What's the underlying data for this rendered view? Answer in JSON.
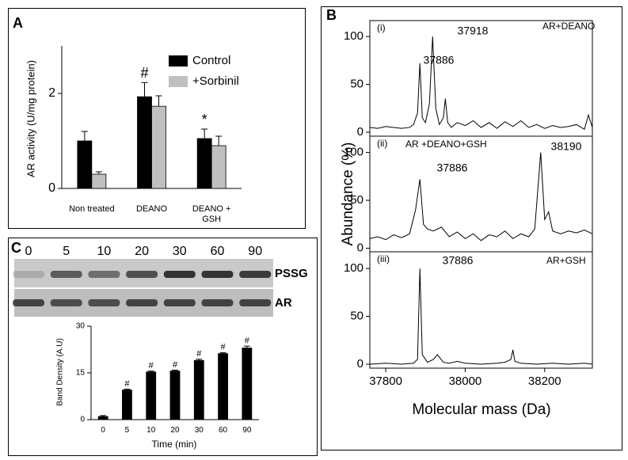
{
  "panel_labels": [
    "A",
    "B",
    "C"
  ],
  "spectra_axes": {
    "ylabel": "Abundance (%)",
    "xlabel": "Molecular mass (Da)"
  },
  "blot": {
    "lanes": [
      "0",
      "5",
      "10",
      "20",
      "30",
      "60",
      "90"
    ],
    "rows": [
      "PSSG",
      "AR"
    ]
  },
  "chart_data": [
    {
      "type": "bar",
      "ylabel": "AR activity (U/mg protein)",
      "categories": [
        "Non treated",
        "DEANO",
        "DEANO +\nGSH"
      ],
      "series": [
        {
          "name": "Control",
          "color": "#000000",
          "values": [
            1.0,
            1.93,
            1.05
          ],
          "errors": [
            0.2,
            0.3,
            0.2
          ],
          "labels": [
            null,
            "#",
            "*"
          ]
        },
        {
          "name": "+Sorbinil",
          "color": "#c0c0c0",
          "values": [
            0.3,
            1.73,
            0.9
          ],
          "errors": [
            0.05,
            0.22,
            0.2
          ],
          "labels": [
            null,
            null,
            null
          ]
        }
      ],
      "ylim": [
        0,
        3
      ],
      "yticks": [
        0,
        2
      ],
      "legend": "upper right"
    },
    {
      "type": "line",
      "panel": "(i)",
      "title": "AR+DEANO",
      "peak_labels": [
        "37886",
        "37918"
      ],
      "color": "#000000",
      "x": [
        37760,
        37780,
        37800,
        37820,
        37840,
        37860,
        37870,
        37880,
        37886,
        37892,
        37900,
        37910,
        37918,
        37926,
        37935,
        37945,
        37950,
        37956,
        37965,
        37980,
        38000,
        38020,
        38040,
        38060,
        38080,
        38100,
        38120,
        38140,
        38160,
        38180,
        38200,
        38220,
        38240,
        38260,
        38280,
        38300,
        38310,
        38320
      ],
      "values": [
        5,
        4,
        6,
        5,
        4,
        5,
        8,
        20,
        72,
        15,
        10,
        30,
        100,
        25,
        8,
        15,
        35,
        10,
        5,
        10,
        7,
        12,
        5,
        10,
        4,
        11,
        6,
        12,
        5,
        8,
        4,
        7,
        5,
        6,
        8,
        3,
        18,
        5
      ],
      "xlim": [
        37760,
        38320
      ],
      "ylim": [
        0,
        110
      ],
      "yticks": [
        0,
        50,
        100
      ]
    },
    {
      "type": "line",
      "panel": "(ii)",
      "title": "AR +DEANO+GSH",
      "peak_labels": [
        "37886",
        "38190"
      ],
      "color": "#000000",
      "x": [
        37760,
        37780,
        37800,
        37820,
        37840,
        37860,
        37875,
        37886,
        37895,
        37905,
        37920,
        37940,
        37960,
        37980,
        38000,
        38020,
        38040,
        38060,
        38080,
        38100,
        38120,
        38140,
        38160,
        38175,
        38190,
        38200,
        38210,
        38220,
        38240,
        38260,
        38280,
        38300,
        38320
      ],
      "values": [
        10,
        12,
        9,
        14,
        11,
        15,
        40,
        72,
        25,
        20,
        18,
        22,
        12,
        17,
        10,
        15,
        8,
        14,
        12,
        18,
        10,
        15,
        12,
        20,
        100,
        30,
        38,
        18,
        15,
        18,
        16,
        19,
        15
      ],
      "xlim": [
        37760,
        38320
      ],
      "ylim": [
        0,
        110
      ],
      "yticks": [
        0,
        50,
        100
      ]
    },
    {
      "type": "line",
      "panel": "(iii)",
      "title": "AR+GSH",
      "peak_labels": [
        "37886"
      ],
      "color": "#000000",
      "x": [
        37760,
        37800,
        37840,
        37870,
        37880,
        37886,
        37892,
        37905,
        37920,
        37930,
        37945,
        37960,
        37980,
        38000,
        38040,
        38080,
        38100,
        38115,
        38120,
        38125,
        38140,
        38180,
        38220,
        38260,
        38300,
        38320
      ],
      "values": [
        0,
        1,
        0,
        1,
        5,
        100,
        10,
        2,
        5,
        10,
        2,
        1,
        3,
        1,
        0,
        1,
        2,
        5,
        15,
        3,
        1,
        0,
        1,
        0,
        1,
        0
      ],
      "xlim": [
        37760,
        38320
      ],
      "xticks": [
        37800,
        38000,
        38200
      ],
      "ylim": [
        0,
        110
      ],
      "yticks": [
        0,
        50,
        100
      ]
    },
    {
      "type": "bar",
      "ylabel": "Band Density (A.U)",
      "xlabel": "Time (min)",
      "categories": [
        "0",
        "5",
        "10",
        "20",
        "30",
        "60",
        "90"
      ],
      "series": [
        {
          "name": null,
          "color": "#000000",
          "values": [
            1,
            9.5,
            15.3,
            15.6,
            19,
            21.2,
            23
          ],
          "errors": [
            0.3,
            0.3,
            0.3,
            0.3,
            0.4,
            0.3,
            0.6
          ],
          "labels": [
            null,
            "#",
            "#",
            "#",
            "#",
            "#",
            "#"
          ]
        }
      ],
      "ylim": [
        0,
        30
      ],
      "yticks": [
        0,
        15,
        30
      ]
    }
  ]
}
